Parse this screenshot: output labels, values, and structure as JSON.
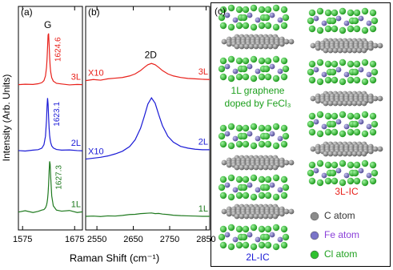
{
  "figure": {
    "xlabel": "Raman Shift (cm⁻¹)",
    "ylabel": "Intensity (Arb. Units)"
  },
  "chart_data": [
    {
      "type": "line",
      "panel_label": "(a)",
      "annotation": "G",
      "xlim": [
        1567,
        1690
      ],
      "xticks": [
        1575,
        1675
      ],
      "ylim": [
        0,
        100
      ],
      "x": [
        1567,
        1580,
        1595,
        1605,
        1612,
        1616,
        1619,
        1621,
        1622,
        1623,
        1624,
        1625,
        1626,
        1627,
        1628,
        1629,
        1631,
        1634,
        1640,
        1650,
        1665,
        1680,
        1690
      ],
      "series": [
        {
          "name": "3L",
          "color": "#e8201a",
          "peak_label": "1624.6",
          "values": [
            65.0,
            65.2,
            65.1,
            65.4,
            65.9,
            66.8,
            68.9,
            72.7,
            76.3,
            81.7,
            87.2,
            87.9,
            82.9,
            77.2,
            73.2,
            70.7,
            68.1,
            66.6,
            65.6,
            65.3,
            64.9,
            65.1,
            65.0
          ]
        },
        {
          "name": "2L",
          "color": "#1a1ad6",
          "peak_label": "1623.1",
          "values": [
            35.5,
            35.3,
            35.7,
            35.9,
            36.6,
            38.1,
            41.9,
            49.2,
            55.2,
            59.0,
            56.3,
            50.4,
            45.5,
            42.3,
            40.4,
            39.1,
            37.6,
            36.7,
            36.0,
            35.7,
            35.8,
            35.5,
            35.4
          ]
        },
        {
          "name": "1L",
          "color": "#1f7a1f",
          "peak_label": "1627.3",
          "values": [
            8.0,
            8.6,
            7.8,
            8.3,
            8.9,
            9.1,
            9.9,
            11.1,
            12.2,
            13.8,
            16.4,
            20.4,
            26.2,
            30.7,
            29.4,
            23.7,
            15.2,
            10.8,
            8.9,
            8.4,
            8.7,
            7.8,
            8.1
          ]
        }
      ]
    },
    {
      "type": "line",
      "panel_label": "(b)",
      "annotation": "2D",
      "xlim": [
        2519,
        2860
      ],
      "xticks": [
        2550,
        2650,
        2750,
        2850
      ],
      "ylim": [
        0,
        100
      ],
      "x": [
        2519,
        2540,
        2560,
        2580,
        2600,
        2620,
        2640,
        2655,
        2670,
        2680,
        2690,
        2700,
        2710,
        2720,
        2730,
        2745,
        2760,
        2780,
        2800,
        2820,
        2840,
        2860
      ],
      "series": [
        {
          "name": "3L",
          "color": "#e8201a",
          "scale_label": "X10",
          "values": [
            66.8,
            67.3,
            67.0,
            67.6,
            67.9,
            68.2,
            68.9,
            69.8,
            71.3,
            72.7,
            73.9,
            74.5,
            73.9,
            72.7,
            71.3,
            69.8,
            68.9,
            68.2,
            67.8,
            67.6,
            67.4,
            67.3
          ]
        },
        {
          "name": "2L",
          "color": "#1a1ad6",
          "scale_label": "X10",
          "values": [
            31.7,
            32.1,
            32.5,
            33.1,
            34.0,
            35.2,
            37.3,
            40.3,
            45.5,
            50.7,
            56.3,
            59.1,
            56.7,
            51.5,
            46.7,
            41.9,
            39.3,
            37.4,
            36.6,
            36.1,
            35.9,
            35.9
          ]
        },
        {
          "name": "1L",
          "color": "#1f7a1f",
          "values": [
            6.1,
            6.2,
            6.0,
            6.3,
            6.2,
            6.5,
            6.9,
            7.0,
            7.3,
            7.4,
            7.5,
            7.6,
            7.3,
            7.4,
            7.1,
            6.9,
            6.6,
            6.4,
            6.3,
            6.2,
            6.1,
            6.1
          ]
        }
      ]
    }
  ],
  "diagram": {
    "panel_label": "(c)",
    "caption": [
      "1L graphene",
      "doped by FeCl₃"
    ],
    "labels": {
      "bilayer": "2L-IC",
      "trilayer": "3L-IC"
    },
    "legend": [
      {
        "label": "C atom",
        "color": "#8c8c8c"
      },
      {
        "label": "Fe atom",
        "color": "#7a74c8"
      },
      {
        "label": "Cl atom",
        "color": "#2fc02f"
      }
    ]
  }
}
